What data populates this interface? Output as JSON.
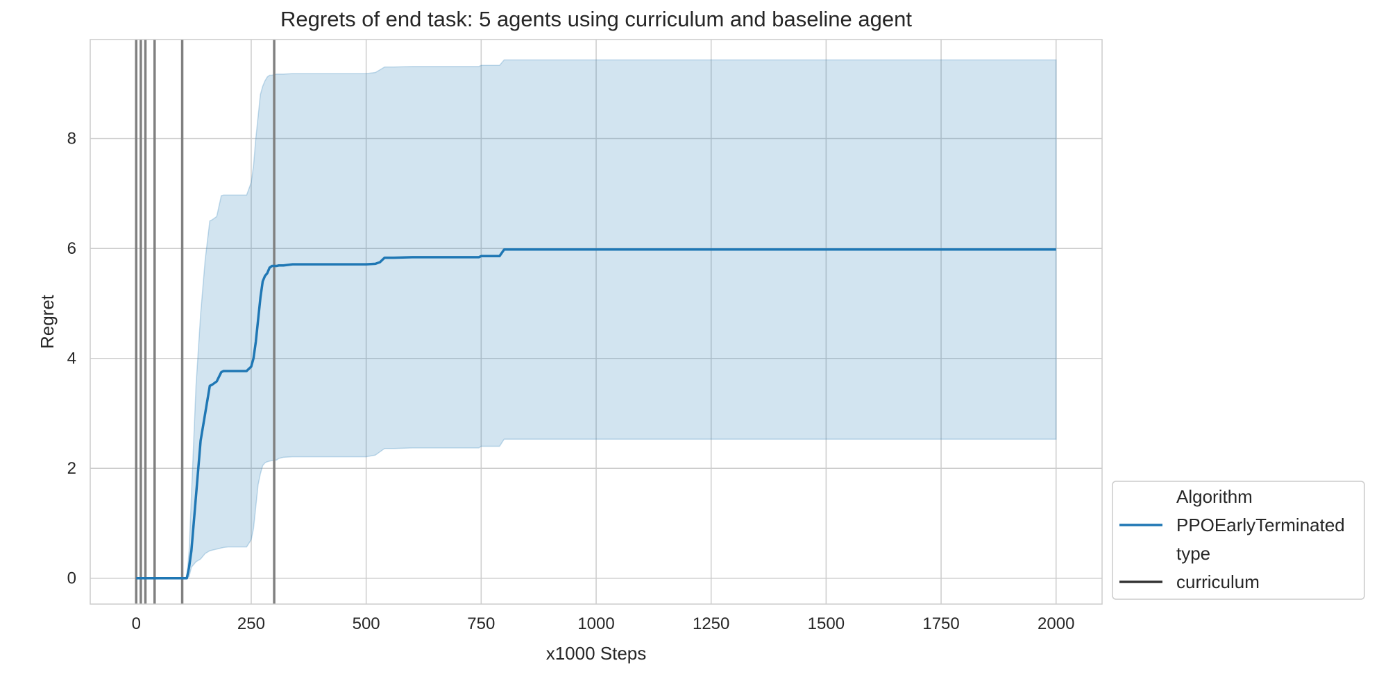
{
  "chart_data": {
    "type": "line",
    "title": "Regrets of end task: 5 agents using curriculum and baseline agent",
    "xlabel": "x1000 Steps",
    "ylabel": "Regret",
    "xlim": [
      -100,
      2100
    ],
    "ylim": [
      -0.47,
      9.8
    ],
    "xticks": [
      0,
      250,
      500,
      750,
      1000,
      1250,
      1500,
      1750,
      2000
    ],
    "yticks": [
      0,
      2,
      4,
      6,
      8
    ],
    "grid": true,
    "legend": {
      "placement": "outside-right-bottom",
      "entries": [
        {
          "label": "Algorithm",
          "kind": "header"
        },
        {
          "label": "PPOEarlyTerminated",
          "kind": "line",
          "color": "#1f77b4"
        },
        {
          "label": "type",
          "kind": "header"
        },
        {
          "label": "curriculum",
          "kind": "line",
          "color": "#333333"
        }
      ]
    },
    "vertical_lines": {
      "color": "#808080",
      "x": [
        0,
        10,
        20,
        40,
        100,
        300
      ]
    },
    "series": [
      {
        "name": "PPOEarlyTerminated",
        "color": "#1f77b4",
        "band_color": "#1f77b4",
        "x": [
          0,
          100,
          110,
          115,
          120,
          125,
          130,
          140,
          150,
          160,
          165,
          175,
          185,
          190,
          200,
          220,
          240,
          250,
          255,
          260,
          265,
          270,
          275,
          280,
          285,
          290,
          295,
          300,
          305,
          310,
          320,
          340,
          400,
          480,
          500,
          520,
          530,
          540,
          560,
          600,
          700,
          745,
          750,
          790,
          800,
          805,
          900,
          1000,
          1500,
          2000
        ],
        "y": [
          0,
          0,
          0,
          0.2,
          0.5,
          1.0,
          1.5,
          2.5,
          3.0,
          3.5,
          3.52,
          3.58,
          3.75,
          3.77,
          3.77,
          3.77,
          3.77,
          3.85,
          4.0,
          4.3,
          4.7,
          5.1,
          5.4,
          5.5,
          5.55,
          5.65,
          5.68,
          5.68,
          5.68,
          5.69,
          5.69,
          5.71,
          5.71,
          5.71,
          5.71,
          5.72,
          5.75,
          5.83,
          5.83,
          5.84,
          5.84,
          5.84,
          5.86,
          5.86,
          5.98,
          5.98,
          5.98,
          5.98,
          5.98,
          5.98
        ],
        "lower": [
          0,
          0,
          0,
          0.03,
          0.2,
          0.25,
          0.3,
          0.35,
          0.45,
          0.5,
          0.51,
          0.53,
          0.55,
          0.56,
          0.57,
          0.57,
          0.57,
          0.7,
          0.9,
          1.3,
          1.7,
          1.9,
          2.05,
          2.1,
          2.12,
          2.13,
          2.14,
          2.15,
          2.15,
          2.18,
          2.2,
          2.21,
          2.21,
          2.21,
          2.21,
          2.24,
          2.3,
          2.36,
          2.36,
          2.37,
          2.37,
          2.37,
          2.4,
          2.4,
          2.53,
          2.53,
          2.53,
          2.53,
          2.53,
          2.53
        ],
        "upper": [
          0,
          0,
          0,
          0.5,
          1.5,
          2.5,
          3.5,
          4.8,
          5.8,
          6.5,
          6.52,
          6.58,
          6.96,
          6.97,
          6.97,
          6.97,
          6.97,
          7.2,
          7.5,
          8.0,
          8.4,
          8.8,
          8.95,
          9.05,
          9.12,
          9.15,
          9.15,
          9.16,
          9.17,
          9.17,
          9.17,
          9.18,
          9.18,
          9.18,
          9.18,
          9.2,
          9.25,
          9.3,
          9.3,
          9.31,
          9.31,
          9.31,
          9.33,
          9.33,
          9.43,
          9.43,
          9.43,
          9.43,
          9.43,
          9.43
        ]
      }
    ]
  }
}
